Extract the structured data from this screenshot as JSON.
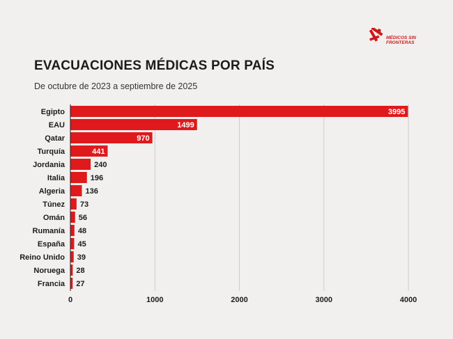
{
  "brand": {
    "logo_text": "MÉDICOS SIN FRONTERAS",
    "accent": "#e0191c"
  },
  "title": "EVACUACIONES MÉDICAS POR PAÍS",
  "subtitle": "De octubre de 2023 a septiembre de 2025",
  "chart_data": {
    "type": "bar",
    "orientation": "horizontal",
    "categories": [
      "Egipto",
      "EAU",
      "Qatar",
      "Turquía",
      "Jordania",
      "Italia",
      "Algeria",
      "Túnez",
      "Omán",
      "Rumanía",
      "España",
      "Reino Unido",
      "Noruega",
      "Francia"
    ],
    "values": [
      3995,
      1499,
      970,
      441,
      240,
      196,
      136,
      73,
      56,
      48,
      45,
      39,
      28,
      27
    ],
    "xlim": [
      0,
      4000
    ],
    "xticks": [
      0,
      1000,
      2000,
      3000,
      4000
    ],
    "grid": true,
    "bar_color": "#e0191c"
  }
}
